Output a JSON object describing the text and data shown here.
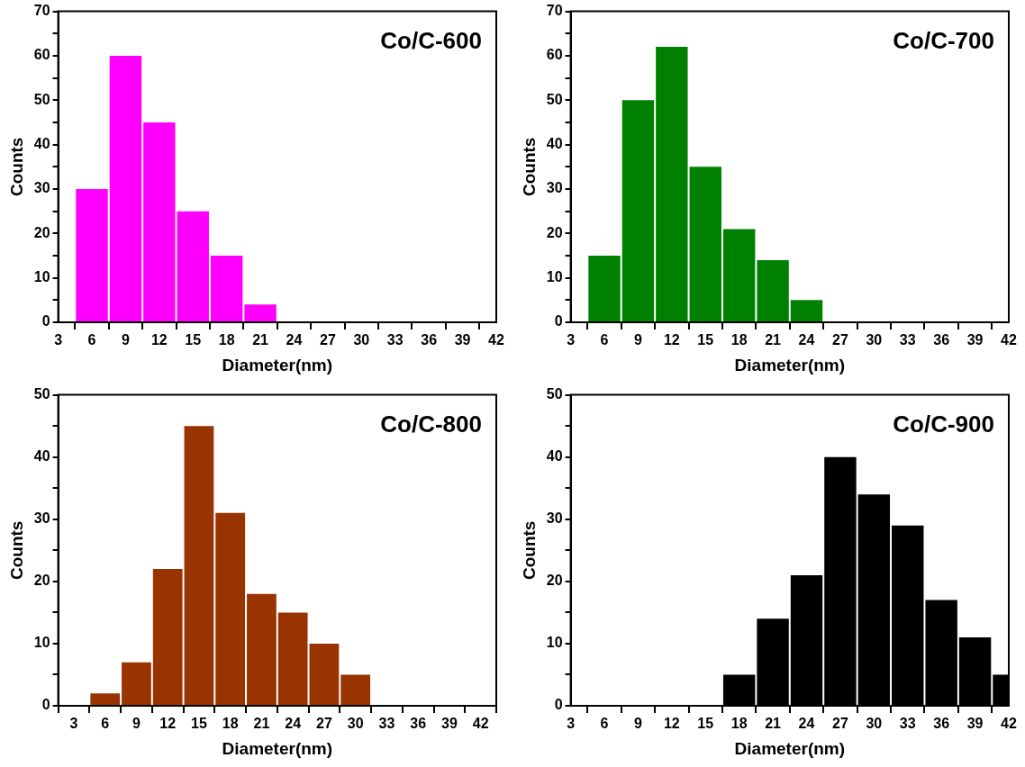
{
  "chart_data": [
    {
      "type": "histogram",
      "title": "Co/C-600",
      "xlabel": "Diameter(nm)",
      "ylabel": "Counts",
      "color": "#ff00ff",
      "bins": [
        4.5,
        7.5,
        10.5,
        13.5,
        16.5,
        19.5,
        22.5
      ],
      "values": [
        30,
        60,
        45,
        25,
        15,
        4
      ],
      "xlim": [
        3,
        42
      ],
      "xticks": [
        3,
        6,
        9,
        12,
        15,
        18,
        21,
        24,
        27,
        30,
        33,
        36,
        39,
        42
      ],
      "ylim": [
        0,
        70
      ],
      "yticks": [
        0,
        {
          "value": 5,
          "label": null
        },
        10,
        {
          "value": 15,
          "label": null
        },
        20,
        {
          "value": 25,
          "label": null
        },
        30,
        {
          "value": 35,
          "label": null
        },
        40,
        {
          "value": 45,
          "label": null
        },
        50,
        {
          "value": 55,
          "label": null
        },
        60,
        {
          "value": 65,
          "label": null
        },
        70
      ]
    },
    {
      "type": "histogram",
      "title": "Co/C-700",
      "xlabel": "Diameter(nm)",
      "ylabel": "Counts",
      "color": "#008000",
      "bins": [
        4.5,
        7.5,
        10.5,
        13.5,
        16.5,
        19.5,
        22.5,
        25.5
      ],
      "values": [
        15,
        50,
        62,
        35,
        21,
        14,
        5
      ],
      "xlim": [
        3,
        42
      ],
      "xticks": [
        3,
        6,
        9,
        12,
        15,
        18,
        21,
        24,
        27,
        30,
        33,
        36,
        39,
        42
      ],
      "ylim": [
        0,
        70
      ],
      "yticks": [
        0,
        {
          "value": 5,
          "label": null
        },
        10,
        {
          "value": 15,
          "label": null
        },
        20,
        {
          "value": 25,
          "label": null
        },
        30,
        {
          "value": 35,
          "label": null
        },
        40,
        {
          "value": 45,
          "label": null
        },
        50,
        {
          "value": 55,
          "label": null
        },
        60,
        {
          "value": 65,
          "label": null
        },
        70
      ]
    },
    {
      "type": "histogram",
      "title": "Co/C-800",
      "xlabel": "Diameter(nm)",
      "ylabel": "Counts",
      "color": "#993300",
      "bins": [
        4.5,
        7.5,
        10.5,
        13.5,
        16.5,
        19.5,
        22.5,
        25.5,
        28.5,
        31.5
      ],
      "values": [
        2,
        7,
        22,
        45,
        31,
        18,
        15,
        10,
        5
      ],
      "xlim": [
        1.5,
        43.5
      ],
      "xticks": [
        3,
        6,
        9,
        12,
        15,
        18,
        21,
        24,
        27,
        30,
        33,
        36,
        39,
        42
      ],
      "ylim": [
        0,
        50
      ],
      "yticks": [
        0,
        {
          "value": 5,
          "label": null
        },
        10,
        {
          "value": 15,
          "label": null
        },
        20,
        {
          "value": 25,
          "label": null
        },
        30,
        {
          "value": 35,
          "label": null
        },
        40,
        {
          "value": 45,
          "label": null
        },
        50
      ]
    },
    {
      "type": "histogram",
      "title": "Co/C-900",
      "xlabel": "Diameter(nm)",
      "ylabel": "Counts",
      "color": "#000000",
      "bins": [
        16.5,
        19.5,
        22.5,
        25.5,
        28.5,
        31.5,
        34.5,
        37.5,
        40.5,
        42
      ],
      "values": [
        5,
        14,
        21,
        40,
        34,
        29,
        17,
        11,
        5
      ],
      "xlim": [
        3,
        42
      ],
      "xticks": [
        3,
        6,
        9,
        12,
        15,
        18,
        21,
        24,
        27,
        30,
        33,
        36,
        39,
        42
      ],
      "ylim": [
        0,
        50
      ],
      "yticks": [
        0,
        {
          "value": 5,
          "label": null
        },
        10,
        {
          "value": 15,
          "label": null
        },
        20,
        {
          "value": 25,
          "label": null
        },
        30,
        {
          "value": 35,
          "label": null
        },
        40,
        {
          "value": 45,
          "label": null
        },
        50
      ]
    }
  ]
}
